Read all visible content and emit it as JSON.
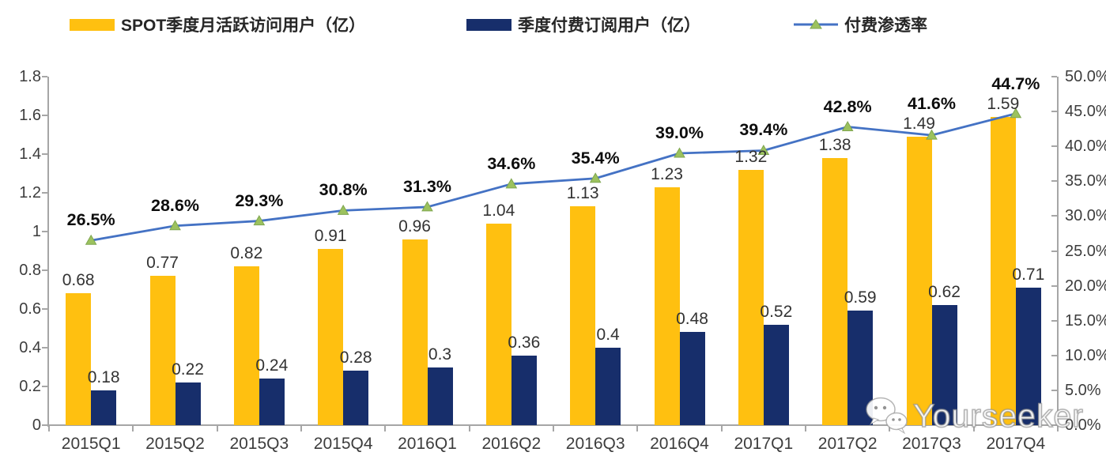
{
  "legend": {
    "items": [
      {
        "label": "SPOT季度月活跃访问用户（亿）",
        "swatch": "bar",
        "color": "#FFC010"
      },
      {
        "label": "季度付费订阅用户（亿）",
        "swatch": "bar",
        "color": "#172E6B"
      },
      {
        "label": "付费渗透率",
        "swatch": "line",
        "color": "#4472C4",
        "marker_color": "#9CC25E"
      }
    ]
  },
  "watermark": {
    "text": "Yourseeker",
    "icon": "wechat-icon"
  },
  "chart_data": {
    "type": "combo-bar-line",
    "categories": [
      "2015Q1",
      "2015Q2",
      "2015Q3",
      "2015Q4",
      "2016Q1",
      "2016Q2",
      "2016Q3",
      "2016Q4",
      "2017Q1",
      "2017Q2",
      "2017Q3",
      "2017Q4"
    ],
    "series": [
      {
        "name": "SPOT季度月活跃访问用户（亿）",
        "type": "bar",
        "axis": "left",
        "color": "#FFC010",
        "values": [
          0.68,
          0.77,
          0.82,
          0.91,
          0.96,
          1.04,
          1.13,
          1.23,
          1.32,
          1.38,
          1.49,
          1.59
        ],
        "labels": [
          "0.68",
          "0.77",
          "0.82",
          "0.91",
          "0.96",
          "1.04",
          "1.13",
          "1.23",
          "1.32",
          "1.38",
          "1.49",
          "1.59"
        ]
      },
      {
        "name": "季度付费订阅用户（亿）",
        "type": "bar",
        "axis": "left",
        "color": "#172E6B",
        "values": [
          0.18,
          0.22,
          0.24,
          0.28,
          0.3,
          0.36,
          0.4,
          0.48,
          0.52,
          0.59,
          0.62,
          0.71
        ],
        "labels": [
          "0.18",
          "0.22",
          "0.24",
          "0.28",
          "0.3",
          "0.36",
          "0.4",
          "0.48",
          "0.52",
          "0.59",
          "0.62",
          "0.71"
        ]
      },
      {
        "name": "付费渗透率",
        "type": "line",
        "axis": "right",
        "color": "#4472C4",
        "marker": "triangle",
        "marker_color": "#9CC25E",
        "values": [
          26.5,
          28.6,
          29.3,
          30.8,
          31.3,
          34.6,
          35.4,
          39.0,
          39.4,
          42.8,
          41.6,
          44.7
        ],
        "labels": [
          "26.5%",
          "28.6%",
          "29.3%",
          "30.8%",
          "31.3%",
          "34.6%",
          "35.4%",
          "39.0%",
          "39.4%",
          "42.8%",
          "41.6%",
          "44.7%"
        ]
      }
    ],
    "left_axis": {
      "min": 0,
      "max": 1.8,
      "ticks": [
        "0",
        "0.2",
        "0.4",
        "0.6",
        "0.8",
        "1",
        "1.2",
        "1.4",
        "1.6",
        "1.8"
      ]
    },
    "right_axis": {
      "min": 0,
      "max": 50,
      "ticks": [
        "0.0%",
        "5.0%",
        "10.0%",
        "15.0%",
        "20.0%",
        "25.0%",
        "30.0%",
        "35.0%",
        "40.0%",
        "45.0%",
        "50.0%"
      ]
    },
    "grid": false,
    "legend_position": "top"
  }
}
